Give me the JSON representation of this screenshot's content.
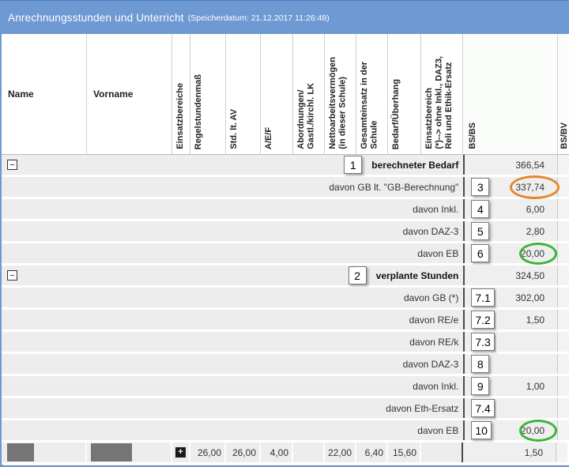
{
  "titlebar": {
    "title": "Anrechnungsstunden und Unterricht",
    "subtitle": "(Speicherdatum: 21.12.2017 11:26:48)"
  },
  "columns": {
    "name": "Name",
    "vorname": "Vorname",
    "vertical": [
      "Einsatzbereiche",
      "Regelstundenmaß",
      "Std. lt. AV",
      "A/E/F",
      "Abordnungen/\nGastl./kirchl. LK",
      "Nettoarbeitsvermögen\n(in dieser Schule)",
      "Gesamteinsatz in der\nSchule",
      "Bedarf/Überhang",
      "Einsatzbereich\n(*)--> ohne Inkl., DAZ3,\nReli und Ethik-Ersatz"
    ],
    "bsbs": "BS/BS",
    "partial_right": "BS/BV"
  },
  "icons": {
    "collapse_glyph": "−",
    "expand_glyph": "+"
  },
  "rows": [
    {
      "type": "group",
      "badge": "1",
      "label": "berechneter Bedarf",
      "value": "366,54"
    },
    {
      "type": "detail",
      "badge": "3",
      "label": "davon GB lt. \"GB-Berechnung\"",
      "value": "337,74",
      "highlight": "orange"
    },
    {
      "type": "detail",
      "badge": "4",
      "label": "davon Inkl.",
      "value": "6,00"
    },
    {
      "type": "detail",
      "badge": "5",
      "label": "davon DAZ-3",
      "value": "2,80"
    },
    {
      "type": "detail",
      "badge": "6",
      "label": "davon EB",
      "value": "20,00",
      "highlight": "green"
    },
    {
      "type": "group",
      "badge": "2",
      "label": "verplante Stunden",
      "value": "324,50"
    },
    {
      "type": "detail",
      "badge": "7.1",
      "label": "davon GB (*)",
      "value": "302,00"
    },
    {
      "type": "detail",
      "badge": "7.2",
      "label": "davon RE/e",
      "value": "1,50"
    },
    {
      "type": "detail",
      "badge": "7.3",
      "label": "davon RE/k",
      "value": ""
    },
    {
      "type": "detail",
      "badge": "8",
      "label": "davon DAZ-3",
      "value": ""
    },
    {
      "type": "detail",
      "badge": "9",
      "label": "davon Inkl.",
      "value": "1,00"
    },
    {
      "type": "detail",
      "badge": "7.4",
      "label": "davon Eth-Ersatz",
      "value": ""
    },
    {
      "type": "detail",
      "badge": "10",
      "label": "davon EB",
      "value": "20,00",
      "highlight": "green"
    }
  ],
  "teacher_row": {
    "regelstundenmass": "26,00",
    "std_lt_av": "26,00",
    "aef": "4,00",
    "abordnungen": "",
    "nettoarbeitsvermoegen": "22,00",
    "gesamteinsatz": "6,40",
    "bedarf_ueberhang": "15,60",
    "einsatzbereich": "",
    "bs_bs": "1,50"
  },
  "colors": {
    "header_blue": "#6e99d3",
    "highlight_orange": "#e58530",
    "highlight_green": "#3cb43c",
    "separator_dark": "#4a4a4a"
  }
}
